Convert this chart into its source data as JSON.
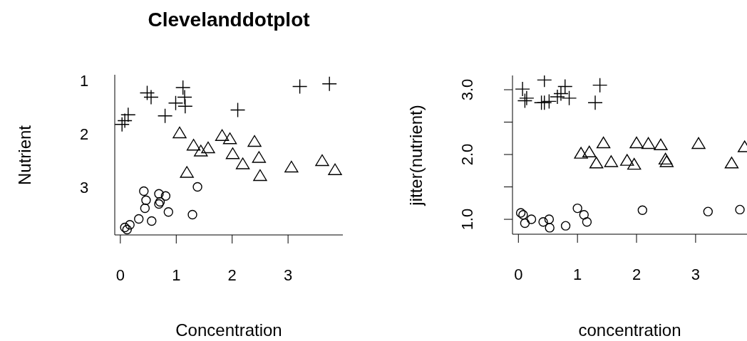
{
  "chart_data": [
    {
      "type": "scatter",
      "title": "Clevelanddotplot",
      "xlabel": "Concentration",
      "ylabel": "Nutrient",
      "xlim": [
        -0.1,
        3.98
      ],
      "xticks": [
        0,
        1,
        2,
        3
      ],
      "ylim": [
        3.9,
        0.9
      ],
      "yticks": [
        1,
        2,
        3
      ],
      "grid": false,
      "series": [
        {
          "color": "#000000",
          "marker": "cross",
          "x": [
            0.03,
            0.08,
            0.14,
            0.48,
            0.55,
            1.12,
            1.15,
            1.16,
            0.99,
            0.8,
            2.1,
            3.21,
            3.74
          ],
          "values": [
            1.83,
            1.76,
            1.65,
            1.24,
            1.32,
            1.14,
            1.32,
            1.49,
            1.43,
            1.67,
            1.56,
            1.12,
            1.07
          ]
        },
        {
          "color": "#000000",
          "marker": "triangle",
          "x": [
            1.06,
            1.31,
            1.44,
            1.57,
            1.19,
            1.82,
            1.96,
            2.01,
            2.19,
            2.4,
            2.48,
            2.5,
            3.06,
            3.61,
            3.84
          ],
          "values": [
            2.0,
            2.23,
            2.34,
            2.28,
            2.74,
            2.05,
            2.11,
            2.39,
            2.58,
            2.16,
            2.46,
            2.8,
            2.64,
            2.52,
            2.69
          ]
        },
        {
          "color": "#000000",
          "marker": "circle",
          "x": [
            0.08,
            0.12,
            0.17,
            0.33,
            0.56,
            0.44,
            0.46,
            0.42,
            0.69,
            0.69,
            0.71,
            0.81,
            0.86,
            1.29,
            1.38
          ],
          "values": [
            3.76,
            3.8,
            3.71,
            3.6,
            3.64,
            3.4,
            3.25,
            3.08,
            3.13,
            3.32,
            3.28,
            3.17,
            3.47,
            3.52,
            3.0
          ]
        }
      ]
    },
    {
      "type": "scatter",
      "xlabel": "concentration",
      "ylabel": "jitter(nutrient)",
      "xlim": [
        -0.1,
        3.87
      ],
      "xticks": [
        0,
        1,
        2,
        3
      ],
      "ylim": [
        0.77,
        3.22
      ],
      "yticks": [
        {
          "value": 1,
          "label": "1.0"
        },
        {
          "value": 1.5,
          "label": null
        },
        {
          "value": 2,
          "label": "2.0"
        },
        {
          "value": 2.5,
          "label": null
        },
        {
          "value": 3,
          "label": "3.0"
        }
      ],
      "grid": false,
      "series": [
        {
          "color": "#000000",
          "marker": "cross",
          "x": [
            0.07,
            0.14,
            0.11,
            0.44,
            0.39,
            0.44,
            0.52,
            0.66,
            0.72,
            0.79,
            0.86,
            1.38,
            1.3
          ],
          "values": [
            3.01,
            2.87,
            2.83,
            3.15,
            2.8,
            2.8,
            2.82,
            2.89,
            2.94,
            3.05,
            2.87,
            3.07,
            2.8
          ]
        },
        {
          "color": "#000000",
          "marker": "triangle",
          "x": [
            1.06,
            1.2,
            1.32,
            1.44,
            1.57,
            1.84,
            1.96,
            2.0,
            2.2,
            2.41,
            2.49,
            2.51,
            3.05,
            3.61,
            3.83
          ],
          "values": [
            2.01,
            2.03,
            1.86,
            2.17,
            1.88,
            1.9,
            1.84,
            2.17,
            2.16,
            2.14,
            1.92,
            1.88,
            2.16,
            1.86,
            2.11
          ]
        },
        {
          "color": "#000000",
          "marker": "circle",
          "x": [
            0.04,
            0.08,
            0.11,
            0.22,
            0.42,
            0.52,
            0.53,
            0.8,
            1.0,
            1.11,
            1.16,
            2.1,
            3.21,
            3.75
          ],
          "values": [
            1.1,
            1.07,
            0.94,
            1.0,
            0.96,
            1.0,
            0.87,
            0.9,
            1.17,
            1.07,
            0.96,
            1.14,
            1.12,
            1.15
          ]
        }
      ]
    }
  ]
}
